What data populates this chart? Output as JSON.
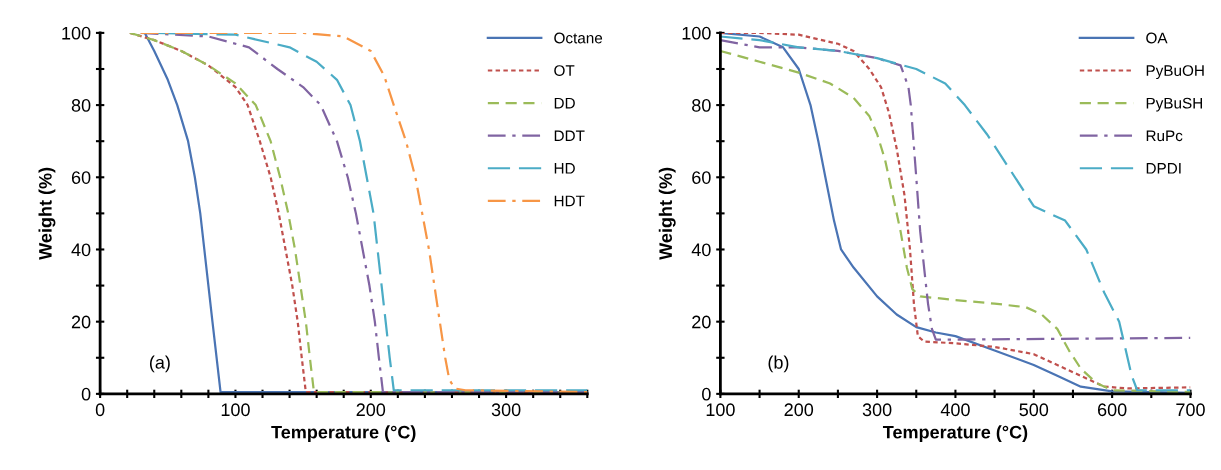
{
  "chart_data": [
    {
      "type": "line",
      "xlabel": "Temperature (°C)",
      "ylabel": "Weight (%)",
      "annotations": [
        "(a)"
      ],
      "legend": "top right",
      "grid": false,
      "xlim": [
        0,
        360
      ],
      "ylim": [
        0,
        100
      ],
      "xticks": [
        0,
        {
          "value": 20,
          "label": null
        },
        {
          "value": 40,
          "label": null
        },
        {
          "value": 60,
          "label": null
        },
        {
          "value": 80,
          "label": null
        },
        100,
        {
          "value": 120,
          "label": null
        },
        {
          "value": 140,
          "label": null
        },
        {
          "value": 160,
          "label": null
        },
        {
          "value": 180,
          "label": null
        },
        200,
        {
          "value": 220,
          "label": null
        },
        {
          "value": 240,
          "label": null
        },
        {
          "value": 260,
          "label": null
        },
        {
          "value": 280,
          "label": null
        },
        300,
        {
          "value": 320,
          "label": null
        },
        {
          "value": 340,
          "label": null
        },
        {
          "value": 360,
          "label": null
        }
      ],
      "yticks": [
        0,
        {
          "value": 10,
          "label": null
        },
        20,
        {
          "value": 30,
          "label": null
        },
        40,
        {
          "value": 50,
          "label": null
        },
        60,
        {
          "value": 70,
          "label": null
        },
        80,
        {
          "value": 90,
          "label": null
        },
        100
      ],
      "series": [
        {
          "name": "Octane",
          "color": "#4a74b4",
          "line_style": "solid",
          "x": [
            33,
            40,
            50,
            57,
            65,
            70,
            74,
            77,
            83,
            89,
            360
          ],
          "values": [
            100,
            95,
            87,
            80,
            70,
            60,
            50,
            40,
            20,
            0.5,
            0.5
          ]
        },
        {
          "name": "OT",
          "color": "#c0504d",
          "line_style": "dotted",
          "x": [
            22,
            40,
            60,
            80,
            100,
            109,
            118,
            126,
            132,
            137,
            142,
            146,
            149,
            152,
            360
          ],
          "values": [
            100,
            98,
            95,
            91,
            85,
            80,
            70,
            60,
            50,
            40,
            30,
            20,
            10,
            0.5,
            0.3
          ]
        },
        {
          "name": "DD",
          "color": "#9bbb59",
          "line_style": "dashed",
          "x": [
            22,
            40,
            60,
            80,
            100,
            115,
            126,
            133,
            139,
            144,
            148,
            152,
            155,
            158,
            360
          ],
          "values": [
            100,
            98,
            95,
            91,
            86,
            80,
            70,
            60,
            50,
            40,
            30,
            20,
            10,
            0.5,
            0.3
          ]
        },
        {
          "name": "DDT",
          "color": "#8064a2",
          "line_style": "dashdot",
          "x": [
            30,
            80,
            110,
            131,
            150,
            163,
            175,
            183,
            189,
            194,
            199,
            203,
            206,
            209,
            360
          ],
          "values": [
            100,
            99,
            96,
            90,
            85,
            80,
            70,
            60,
            50,
            40,
            30,
            20,
            10,
            0.5,
            0.5
          ]
        },
        {
          "name": "HD",
          "color": "#4bacc6",
          "line_style": "longdash",
          "x": [
            40,
            100,
            140,
            160,
            175,
            185,
            192,
            197,
            202,
            205,
            208,
            211,
            214,
            217,
            360
          ],
          "values": [
            100,
            99.5,
            96,
            92,
            87,
            80,
            70,
            60,
            50,
            40,
            30,
            20,
            10,
            1,
            1
          ]
        },
        {
          "name": "HDT",
          "color": "#f79646",
          "line_style": "dashdot",
          "x": [
            30,
            150,
            180,
            200,
            210,
            217,
            226,
            233,
            238,
            243,
            247,
            251,
            255,
            258,
            262,
            270,
            360
          ],
          "values": [
            100,
            100,
            99,
            95,
            88,
            80,
            70,
            60,
            50,
            40,
            30,
            20,
            10,
            4,
            1.5,
            1,
            0.5
          ]
        }
      ]
    },
    {
      "type": "line",
      "xlabel": "Temperature (°C)",
      "ylabel": "Weight (%)",
      "annotations": [
        "(b)"
      ],
      "legend": "top right",
      "grid": false,
      "xlim": [
        100,
        700
      ],
      "ylim": [
        0,
        100
      ],
      "xticks": [
        100,
        {
          "value": 150,
          "label": null
        },
        200,
        {
          "value": 250,
          "label": null
        },
        300,
        {
          "value": 350,
          "label": null
        },
        400,
        {
          "value": 450,
          "label": null
        },
        500,
        {
          "value": 550,
          "label": null
        },
        600,
        {
          "value": 650,
          "label": null
        },
        700
      ],
      "yticks": [
        0,
        {
          "value": 10,
          "label": null
        },
        20,
        {
          "value": 30,
          "label": null
        },
        40,
        {
          "value": 50,
          "label": null
        },
        60,
        {
          "value": 70,
          "label": null
        },
        80,
        {
          "value": 90,
          "label": null
        },
        100
      ],
      "series": [
        {
          "name": "OA",
          "color": "#4a74b4",
          "line_style": "solid",
          "x": [
            100,
            150,
            180,
            200,
            215,
            225,
            234,
            245,
            254,
            270,
            300,
            325,
            350,
            375,
            400,
            450,
            500,
            530,
            560,
            600,
            700
          ],
          "values": [
            100,
            99,
            96,
            90,
            80,
            70,
            60,
            48,
            40,
            35,
            27,
            22,
            18.5,
            17,
            16,
            12,
            8,
            5,
            2,
            0.7,
            0.3
          ]
        },
        {
          "name": "PyBuOH",
          "color": "#c0504d",
          "line_style": "dotted",
          "x": [
            100,
            150,
            200,
            250,
            270,
            290,
            305,
            315,
            325,
            335,
            342,
            347,
            352,
            360,
            400,
            450,
            500,
            530,
            560,
            590,
            620,
            700
          ],
          "values": [
            100,
            100,
            99.5,
            97,
            95,
            90,
            85,
            78,
            68,
            55,
            40,
            25,
            16,
            14.5,
            14,
            13,
            11,
            8,
            5,
            2,
            1.5,
            1.8
          ]
        },
        {
          "name": "PyBuSH",
          "color": "#9bbb59",
          "line_style": "dashed",
          "x": [
            100,
            150,
            200,
            240,
            270,
            290,
            300,
            310,
            320,
            330,
            338,
            345,
            355,
            400,
            450,
            490,
            510,
            530,
            545,
            560,
            580,
            600,
            700
          ],
          "values": [
            95,
            92,
            89,
            86,
            82,
            77,
            72,
            65,
            55,
            45,
            35,
            29,
            27,
            26,
            25,
            24,
            22,
            18,
            12,
            7,
            3,
            1,
            0.5
          ]
        },
        {
          "name": "RuPc",
          "color": "#8064a2",
          "line_style": "dashdot",
          "x": [
            100,
            150,
            200,
            250,
            300,
            330,
            340,
            343,
            350,
            355,
            360,
            365,
            370,
            375,
            700
          ],
          "values": [
            98,
            96,
            96,
            95,
            93,
            91,
            85,
            80,
            60,
            45,
            35,
            25,
            18,
            15,
            15.5
          ]
        },
        {
          "name": "DPDI",
          "color": "#4bacc6",
          "line_style": "longdash",
          "x": [
            100,
            150,
            200,
            250,
            300,
            350,
            387,
            412,
            440,
            470,
            500,
            540,
            567,
            590,
            609,
            625,
            632,
            700
          ],
          "values": [
            99,
            98,
            96,
            95,
            93,
            90,
            86,
            80,
            72,
            62,
            52,
            48,
            40,
            28,
            20,
            5,
            1,
            1
          ]
        }
      ]
    }
  ]
}
